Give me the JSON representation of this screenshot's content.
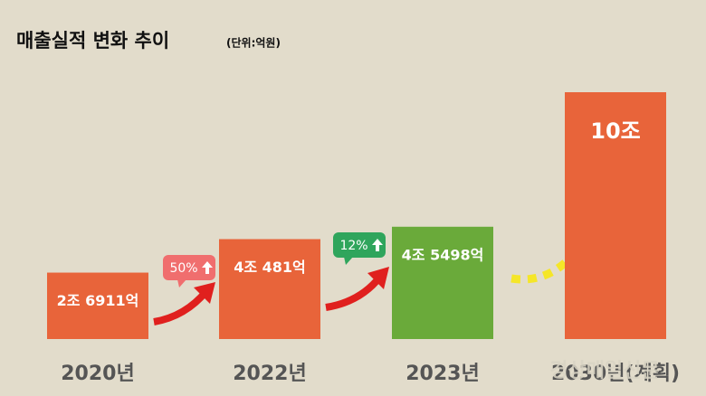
{
  "chart_data": {
    "type": "bar",
    "title": "매출실적 변화 추이",
    "subtitle": "(단위:억원)",
    "categories": [
      "2020년",
      "2022년",
      "2023년",
      "2030년(계획)"
    ],
    "values": [
      26911,
      40481,
      45498,
      100000
    ],
    "value_labels": [
      "2조 6911억",
      "4조 481억",
      "4조 5498억",
      "10조"
    ],
    "colors": [
      "#e8643a",
      "#e8643a",
      "#6aaa3a",
      "#e8643a"
    ],
    "ylim": [
      0,
      100000
    ],
    "annotations": [
      "50%",
      "12%"
    ],
    "watermark": "경상매일신문"
  }
}
